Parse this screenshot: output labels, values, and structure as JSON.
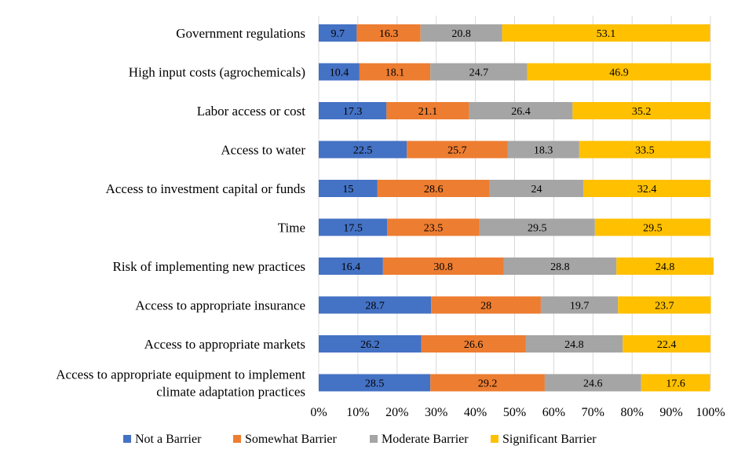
{
  "chart_data": {
    "type": "bar",
    "orientation": "horizontal",
    "stacked": true,
    "percent": true,
    "title": "",
    "xlabel": "",
    "ylabel": "",
    "xlim": [
      0,
      100
    ],
    "grid": true,
    "legend_position": "bottom",
    "categories": [
      [
        "Government regulations"
      ],
      [
        "High input costs (agrochemicals)"
      ],
      [
        "Labor access or cost"
      ],
      [
        "Access to water"
      ],
      [
        "Access to investment capital or funds"
      ],
      [
        "Time"
      ],
      [
        "Risk of implementing new practices"
      ],
      [
        "Access to appropriate insurance"
      ],
      [
        "Access to appropriate markets"
      ],
      [
        "Access to appropriate equipment to implement",
        "climate adaptation practices"
      ]
    ],
    "series": [
      {
        "name": "Not a Barrier",
        "color": "#4472C4",
        "values": [
          9.7,
          10.4,
          17.3,
          22.5,
          15,
          17.5,
          16.4,
          28.7,
          26.2,
          28.5
        ],
        "labels": [
          "9.7",
          "10.4",
          "17.3",
          "22.5",
          "15",
          "17.5",
          "16.4",
          "28.7",
          "26.2",
          "28.5"
        ]
      },
      {
        "name": "Somewhat Barrier",
        "color": "#ED7D31",
        "values": [
          16.3,
          18.1,
          21.1,
          25.7,
          28.6,
          23.5,
          30.8,
          28,
          26.6,
          29.2
        ],
        "labels": [
          "16.3",
          "18.1",
          "21.1",
          "25.7",
          "28.6",
          "23.5",
          "30.8",
          "28",
          "26.6",
          "29.2"
        ]
      },
      {
        "name": "Moderate Barrier",
        "color": "#A5A5A5",
        "values": [
          20.8,
          24.7,
          26.4,
          18.3,
          24,
          29.5,
          28.8,
          19.7,
          24.8,
          24.6
        ],
        "labels": [
          "20.8",
          "24.7",
          "26.4",
          "18.3",
          "24",
          "29.5",
          "28.8",
          "19.7",
          "24.8",
          "24.6"
        ]
      },
      {
        "name": "Significant Barrier",
        "color": "#FFC000",
        "values": [
          53.1,
          46.9,
          35.2,
          33.5,
          32.4,
          29.5,
          24.8,
          23.7,
          22.4,
          17.6
        ],
        "labels": [
          "53.1",
          "46.9",
          "35.2",
          "33.5",
          "32.4",
          "29.5",
          "24.8",
          "23.7",
          "22.4",
          "17.6"
        ]
      }
    ],
    "ticks": [
      "0%",
      "10%",
      "20%",
      "30%",
      "40%",
      "50%",
      "60%",
      "70%",
      "80%",
      "90%",
      "100%"
    ]
  }
}
